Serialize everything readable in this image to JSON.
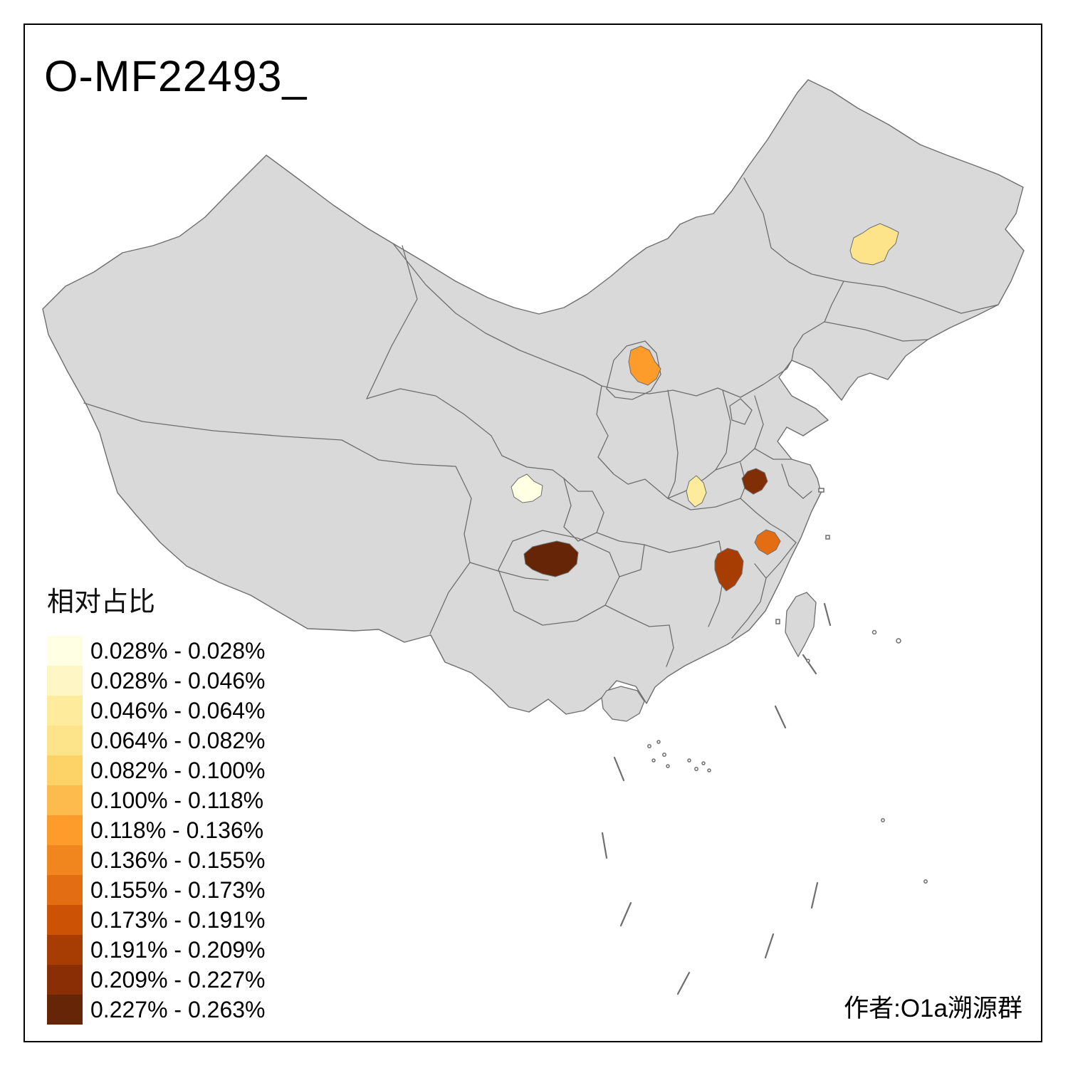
{
  "title": "O-MF22493_",
  "attribution": "作者:O1a溯源群",
  "legend": {
    "title": "相对占比",
    "items": [
      {
        "label": "0.028% - 0.028%",
        "color": "#FFFFE3"
      },
      {
        "label": "0.028% - 0.046%",
        "color": "#FFF6C5"
      },
      {
        "label": "0.046% - 0.064%",
        "color": "#FEEC9C"
      },
      {
        "label": "0.064% - 0.082%",
        "color": "#FDE38A"
      },
      {
        "label": "0.082% - 0.100%",
        "color": "#FDD266"
      },
      {
        "label": "0.100% - 0.118%",
        "color": "#FDBA4D"
      },
      {
        "label": "0.118% - 0.136%",
        "color": "#FD9C2B"
      },
      {
        "label": "0.136% - 0.155%",
        "color": "#F1861F"
      },
      {
        "label": "0.155% - 0.173%",
        "color": "#E36D12"
      },
      {
        "label": "0.173% - 0.191%",
        "color": "#CC5205"
      },
      {
        "label": "0.191% - 0.209%",
        "color": "#A83D03"
      },
      {
        "label": "0.209% - 0.227%",
        "color": "#8A2F05"
      },
      {
        "label": "0.227% - 0.263%",
        "color": "#662506"
      }
    ]
  },
  "map": {
    "base_fill": "#D9D9D9",
    "border_color": "#6E6E6E",
    "frame_color": "#000000",
    "regions": [
      {
        "name": "northeast-region",
        "color": "#FDE38A",
        "range": "0.064% - 0.082%"
      },
      {
        "name": "north-central-region",
        "color": "#FD9C2B",
        "range": "0.118% - 0.136%"
      },
      {
        "name": "west-basin-region",
        "color": "#FFFFE3",
        "range": "0.028% - 0.028%"
      },
      {
        "name": "central-region",
        "color": "#FEEC9C",
        "range": "0.046% - 0.064%"
      },
      {
        "name": "east-central-dark-region",
        "color": "#812D05",
        "range": "0.209% - 0.227%"
      },
      {
        "name": "east-orange-region",
        "color": "#E36D12",
        "range": "0.155% - 0.173%"
      },
      {
        "name": "south-central-region",
        "color": "#A83D03",
        "range": "0.191% - 0.209%"
      },
      {
        "name": "southwest-dark-region",
        "color": "#662506",
        "range": "0.227% - 0.263%"
      }
    ]
  },
  "chart_data": {
    "type": "heatmap",
    "subtype": "choropleth-map-of-china",
    "title": "O-MF22493_",
    "legend_title": "相对占比",
    "legend_position": "bottom-left",
    "value_unit": "%",
    "bins": [
      {
        "range": "0.028% - 0.028%",
        "color": "#FFFFE3"
      },
      {
        "range": "0.028% - 0.046%",
        "color": "#FFF6C5"
      },
      {
        "range": "0.046% - 0.064%",
        "color": "#FEEC9C"
      },
      {
        "range": "0.064% - 0.082%",
        "color": "#FDE38A"
      },
      {
        "range": "0.082% - 0.100%",
        "color": "#FDD266"
      },
      {
        "range": "0.100% - 0.118%",
        "color": "#FDBA4D"
      },
      {
        "range": "0.118% - 0.136%",
        "color": "#FD9C2B"
      },
      {
        "range": "0.136% - 0.155%",
        "color": "#F1861F"
      },
      {
        "range": "0.155% - 0.173%",
        "color": "#E36D12"
      },
      {
        "range": "0.173% - 0.191%",
        "color": "#CC5205"
      },
      {
        "range": "0.191% - 0.209%",
        "color": "#A83D03"
      },
      {
        "range": "0.209% - 0.227%",
        "color": "#8A2F05"
      },
      {
        "range": "0.227% - 0.263%",
        "color": "#662506"
      }
    ],
    "highlighted_regions": [
      {
        "location": "northeast",
        "range": "0.064% - 0.082%"
      },
      {
        "location": "north-central",
        "range": "0.118% - 0.136%"
      },
      {
        "location": "west-basin",
        "range": "0.028% - 0.028%"
      },
      {
        "location": "central",
        "range": "0.046% - 0.064%"
      },
      {
        "location": "east-central",
        "range": "0.209% - 0.227%"
      },
      {
        "location": "east",
        "range": "0.155% - 0.173%"
      },
      {
        "location": "south-central",
        "range": "0.191% - 0.209%"
      },
      {
        "location": "southwest",
        "range": "0.227% - 0.263%"
      }
    ],
    "annotations": [
      "作者:O1a溯源群"
    ]
  }
}
